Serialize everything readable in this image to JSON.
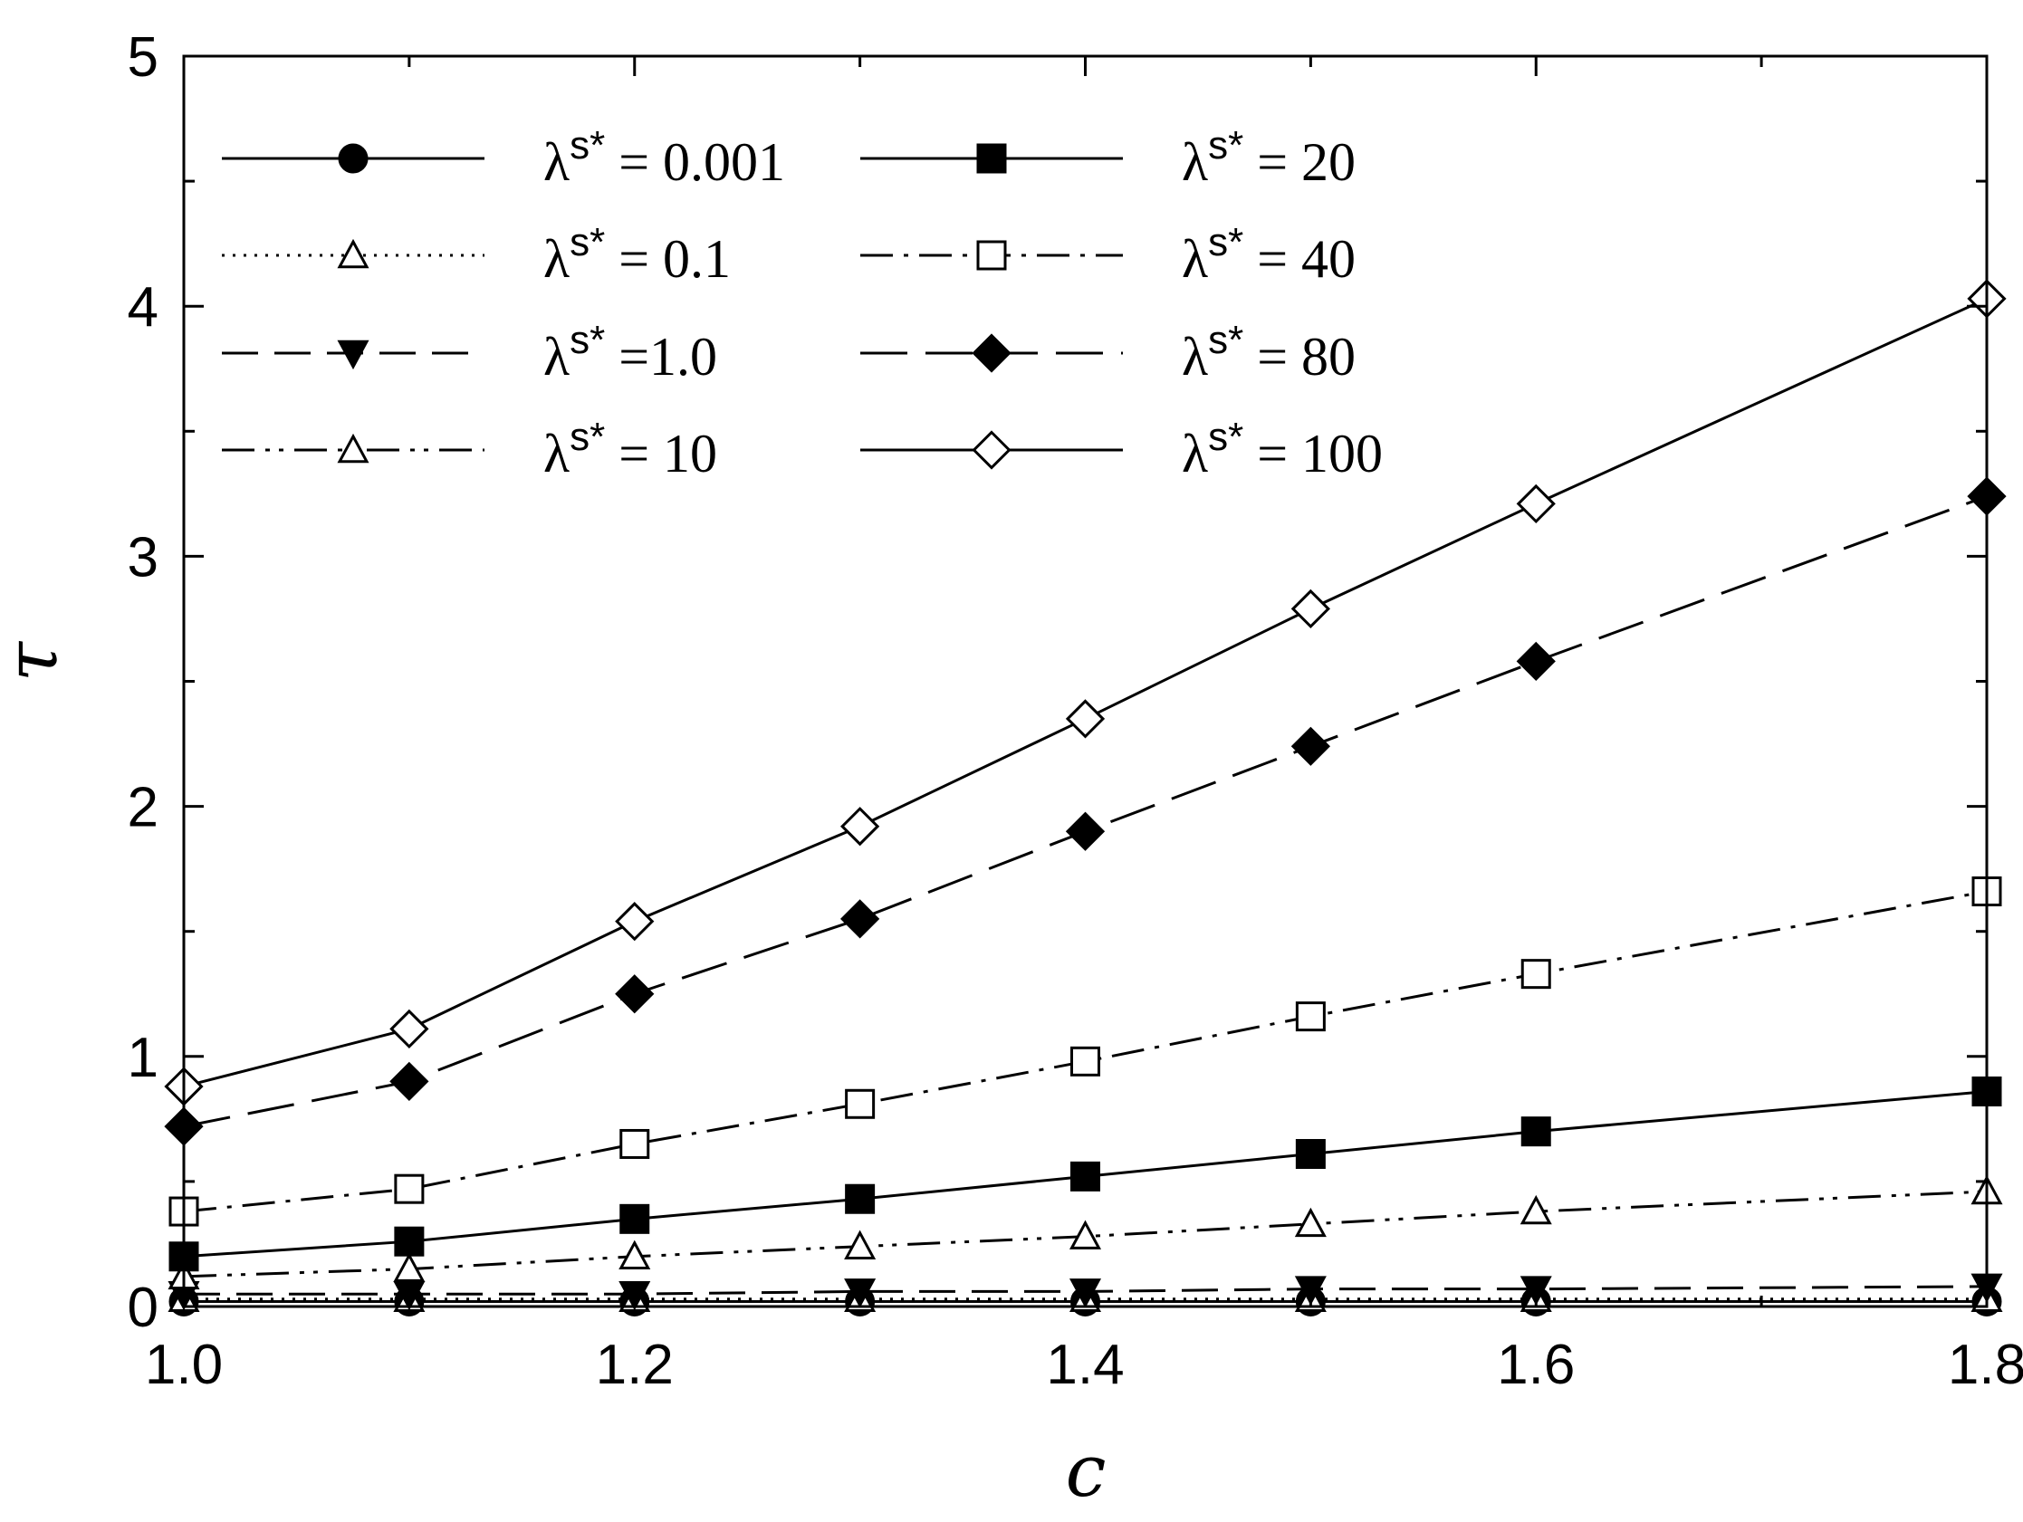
{
  "chart_data": {
    "type": "line",
    "title": "",
    "xlabel": "c",
    "ylabel": "τ",
    "xlim": [
      1.0,
      1.8
    ],
    "ylim": [
      0,
      5
    ],
    "x_ticks": [
      "1.0",
      "1.2",
      "1.4",
      "1.6",
      "1.8"
    ],
    "y_ticks": [
      "0",
      "1",
      "2",
      "3",
      "4",
      "5"
    ],
    "grid": false,
    "legend_position": "top-left, two columns",
    "x": [
      1.0,
      1.1,
      1.2,
      1.3,
      1.4,
      1.5,
      1.6,
      1.8
    ],
    "series": [
      {
        "name": "λs* = 0.001",
        "label_symbol": "λ",
        "label_sup": "s*",
        "label_tail": " = 0.001",
        "marker": "filled-circle",
        "line": "solid",
        "values": [
          0.02,
          0.02,
          0.02,
          0.02,
          0.02,
          0.02,
          0.02,
          0.02
        ]
      },
      {
        "name": "λs* = 0.1",
        "label_symbol": "λ",
        "label_sup": "s*",
        "label_tail": " = 0.1",
        "marker": "open-triangle",
        "line": "dotted",
        "values": [
          0.03,
          0.03,
          0.03,
          0.03,
          0.03,
          0.03,
          0.03,
          0.03
        ]
      },
      {
        "name": "λs* =1.0",
        "label_symbol": "λ",
        "label_sup": "s*",
        "label_tail": " =1.0",
        "marker": "filled-triangle-down",
        "line": "dashed",
        "values": [
          0.05,
          0.05,
          0.05,
          0.06,
          0.06,
          0.07,
          0.07,
          0.08
        ]
      },
      {
        "name": "λs* = 10",
        "label_symbol": "λ",
        "label_sup": "s*",
        "label_tail": " = 10",
        "marker": "open-triangle",
        "line": "dash-dot-dot",
        "values": [
          0.12,
          0.15,
          0.2,
          0.24,
          0.28,
          0.33,
          0.38,
          0.46
        ]
      },
      {
        "name": "λs* = 20",
        "label_symbol": "λ",
        "label_sup": "s*",
        "label_tail": " = 20",
        "marker": "filled-square",
        "line": "solid",
        "values": [
          0.2,
          0.26,
          0.35,
          0.43,
          0.52,
          0.61,
          0.7,
          0.86
        ]
      },
      {
        "name": "λs* = 40",
        "label_symbol": "λ",
        "label_sup": "s*",
        "label_tail": " = 40",
        "marker": "open-square",
        "line": "dash-dot",
        "values": [
          0.38,
          0.47,
          0.65,
          0.81,
          0.98,
          1.16,
          1.33,
          1.66
        ]
      },
      {
        "name": "λs* = 80",
        "label_symbol": "λ",
        "label_sup": "s*",
        "label_tail": " = 80",
        "marker": "filled-diamond",
        "line": "long-dash",
        "values": [
          0.72,
          0.9,
          1.25,
          1.55,
          1.9,
          2.24,
          2.58,
          3.24
        ]
      },
      {
        "name": "λs* = 100",
        "label_symbol": "λ",
        "label_sup": "s*",
        "label_tail": " = 100",
        "marker": "open-diamond",
        "line": "solid",
        "values": [
          0.88,
          1.11,
          1.54,
          1.92,
          2.35,
          2.79,
          3.21,
          4.03
        ]
      }
    ]
  }
}
